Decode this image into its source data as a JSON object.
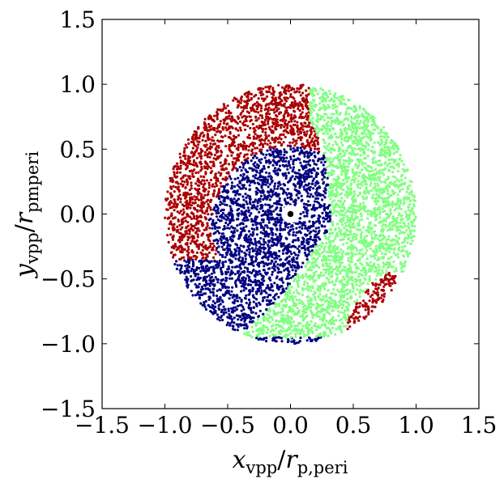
{
  "chart_data": {
    "type": "scatter",
    "title": "",
    "xlabel": {
      "main": "x",
      "sub_main": "vpp",
      "slash": "/",
      "r": "r",
      "sub_r": "p,peri"
    },
    "ylabel": {
      "main": "y",
      "sub_main": "vpp",
      "slash": "/",
      "r": "r",
      "sub_r": "pmperi"
    },
    "xlim": [
      -1.5,
      1.5
    ],
    "ylim": [
      -1.5,
      1.5
    ],
    "xticks": [
      -1.5,
      -1.0,
      -0.5,
      0.0,
      0.5,
      1.0,
      1.5
    ],
    "yticks": [
      -1.5,
      -1.0,
      -0.5,
      0.0,
      0.5,
      1.0,
      1.5
    ],
    "xtick_labels": [
      "−1.5",
      "−1.0",
      "−0.5",
      "0.0",
      "0.5",
      "1.0",
      "1.5"
    ],
    "ytick_labels": [
      "−1.5",
      "−1.0",
      "−0.5",
      "0.0",
      "0.5",
      "1.0",
      "1.5"
    ],
    "grid": false,
    "legend": "none",
    "series": [
      {
        "color": "#aa0000",
        "region": "outer red: upper-left arc and lower-right patch",
        "r_range": [
          0.55,
          1.0
        ]
      },
      {
        "color": "#000080",
        "region": "navy inner disk and lower-left lobe",
        "r_range": [
          0.05,
          0.95
        ]
      },
      {
        "color": "#80ff80",
        "region": "light green right half arc",
        "r_range": [
          0.25,
          1.0
        ]
      }
    ],
    "center_marker": {
      "x": 0.0,
      "y": 0.0,
      "hole_radius": 0.06,
      "color": "#000000"
    }
  }
}
